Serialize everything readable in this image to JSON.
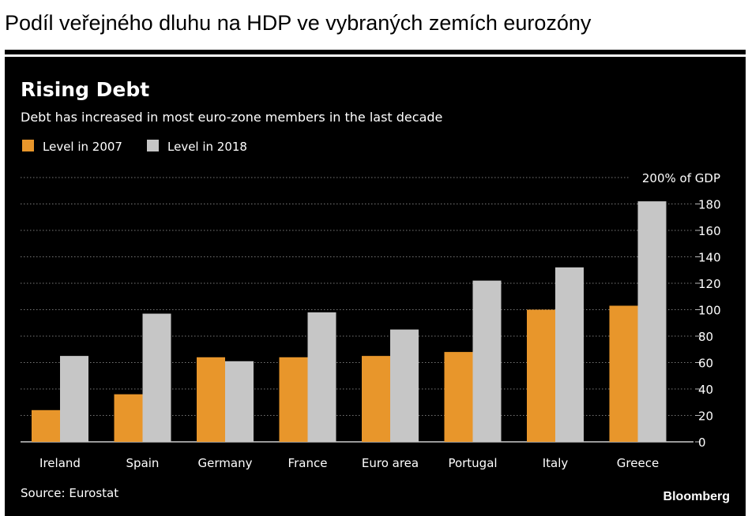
{
  "page": {
    "heading": "Podíl veřejného dluhu na HDP ve vybraných zemích eurozóny"
  },
  "chart_data": {
    "type": "bar",
    "title": "Rising Debt",
    "subtitle": "Debt has increased in most euro-zone members in the last decade",
    "categories": [
      "Ireland",
      "Spain",
      "Germany",
      "France",
      "Euro area",
      "Portugal",
      "Italy",
      "Greece"
    ],
    "series": [
      {
        "name": "Level in 2007",
        "color": "#e8962b",
        "values": [
          24,
          36,
          64,
          64,
          65,
          68,
          100,
          103
        ]
      },
      {
        "name": "Level in 2018",
        "color": "#c6c6c6",
        "values": [
          65,
          97,
          61,
          98,
          85,
          122,
          132,
          182
        ]
      }
    ],
    "y_axis": {
      "ylim": [
        0,
        200
      ],
      "ticks": [
        0,
        20,
        40,
        60,
        80,
        100,
        120,
        140,
        160,
        180
      ],
      "top_label": "200% of GDP",
      "side": "right"
    },
    "grid": true,
    "legend_position": "top-left",
    "source": "Source: Eurostat",
    "brand": "Bloomberg",
    "colors": {
      "background": "#000000",
      "text": "#ffffff",
      "grid": "#777777"
    }
  }
}
